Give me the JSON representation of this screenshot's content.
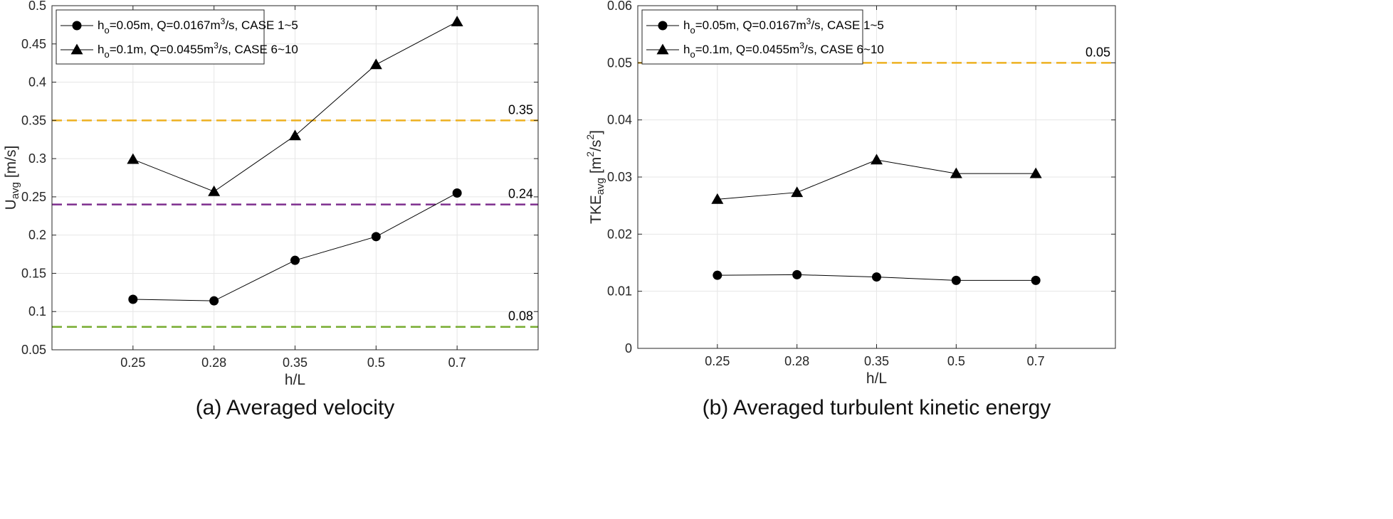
{
  "chart_data": [
    {
      "type": "line",
      "caption": "(a) Averaged velocity",
      "xlabel": "h/L",
      "ylabel": {
        "main": "U",
        "sub": "avg",
        "unit": " [m/s]"
      },
      "categories": [
        "0.25",
        "0.28",
        "0.35",
        "0.5",
        "0.7"
      ],
      "ylim": [
        0.05,
        0.5
      ],
      "yticks": [
        "0.05",
        "0.1",
        "0.15",
        "0.2",
        "0.25",
        "0.3",
        "0.35",
        "0.4",
        "0.45",
        "0.5"
      ],
      "grid": true,
      "legend_position": "top-left",
      "series": [
        {
          "name": {
            "h": "h",
            "sub": "o",
            "rest": "=0.05m, Q=0.0167m",
            "sup": "3",
            "tail": "/s, CASE 1~5"
          },
          "marker": "circle",
          "values": [
            0.116,
            0.114,
            0.167,
            0.198,
            0.255
          ]
        },
        {
          "name": {
            "h": "h",
            "sub": "o",
            "rest": "=0.1m, Q=0.0455m",
            "sup": "3",
            "tail": "/s, CASE 6~10"
          },
          "marker": "triangle",
          "values": [
            0.299,
            0.257,
            0.33,
            0.423,
            0.479
          ]
        }
      ],
      "reference_lines": [
        {
          "value": 0.35,
          "label": "0.35",
          "color": "#EDB120"
        },
        {
          "value": 0.24,
          "label": "0.24",
          "color": "#7E2F8E"
        },
        {
          "value": 0.08,
          "label": "0.08",
          "color": "#77AC30"
        }
      ]
    },
    {
      "type": "line",
      "caption": "(b) Averaged turbulent kinetic energy",
      "xlabel": "h/L",
      "ylabel": {
        "main": "TKE",
        "sub": "avg",
        "unit1": " [m",
        "sup1": "2",
        "unit2": "/s",
        "sup2": "2",
        "unit3": "]"
      },
      "categories": [
        "0.25",
        "0.28",
        "0.35",
        "0.5",
        "0.7"
      ],
      "ylim": [
        0,
        0.06
      ],
      "yticks": [
        "0",
        "0.01",
        "0.02",
        "0.03",
        "0.04",
        "0.05",
        "0.06"
      ],
      "grid": true,
      "legend_position": "top-left",
      "series": [
        {
          "name": {
            "h": "h",
            "sub": "o",
            "rest": "=0.05m, Q=0.0167m",
            "sup": "3",
            "tail": "/s, CASE 1~5"
          },
          "marker": "circle",
          "values": [
            0.0128,
            0.0129,
            0.0125,
            0.0119,
            0.0119
          ]
        },
        {
          "name": {
            "h": "h",
            "sub": "o",
            "rest": "=0.1m, Q=0.0455m",
            "sup": "3",
            "tail": "/s, CASE 6~10"
          },
          "marker": "triangle",
          "values": [
            0.0261,
            0.0273,
            0.033,
            0.0306,
            0.0306
          ]
        }
      ],
      "reference_lines": [
        {
          "value": 0.05,
          "label": "0.05",
          "color": "#EDB120"
        }
      ]
    }
  ]
}
